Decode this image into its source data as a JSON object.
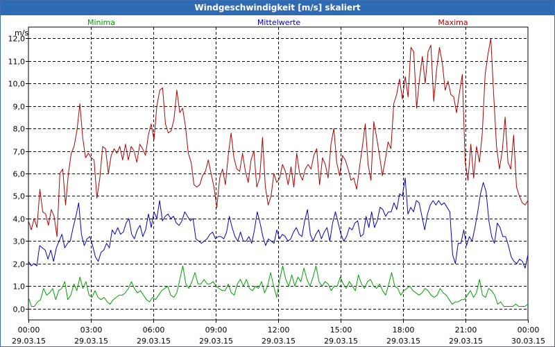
{
  "window": {
    "title": "Windgeschwindigkeit [m/s] skaliert"
  },
  "chart_data": {
    "type": "line",
    "title": "Windgeschwindigkeit [m/s] skaliert",
    "ylabel": "m/s",
    "xlabel": "",
    "ylim": [
      -0.5,
      12.5
    ],
    "xlim": [
      0,
      24
    ],
    "grid": true,
    "y_ticks": [
      "0,0",
      "1,0",
      "2,0",
      "3,0",
      "4,0",
      "5,0",
      "6,0",
      "7,0",
      "8,0",
      "9,0",
      "10,0",
      "11,0",
      "12,0"
    ],
    "x_ticks": [
      {
        "time": "00:00",
        "date": "29.03.15"
      },
      {
        "time": "03:00",
        "date": "29.03.15"
      },
      {
        "time": "06:00",
        "date": "29.03.15"
      },
      {
        "time": "09:00",
        "date": "29.03.15"
      },
      {
        "time": "12:00",
        "date": "29.03.15"
      },
      {
        "time": "15:00",
        "date": "29.03.15"
      },
      {
        "time": "18:00",
        "date": "29.03.15"
      },
      {
        "time": "21:00",
        "date": "29.03.15"
      },
      {
        "time": "00:00",
        "date": "30.03.15"
      }
    ],
    "legend_position": "top",
    "series": [
      {
        "name": "Minima",
        "color": "#00a000",
        "values": [
          0.5,
          0.1,
          0.1,
          0.3,
          0.4,
          0.9,
          0.6,
          0.7,
          0.9,
          0.4,
          0.8,
          0.9,
          1.2,
          0.4,
          0.6,
          1.1,
          0.8,
          1.4,
          0.9,
          1.2,
          0.6,
          0.5,
          0.8,
          0.5,
          0.4,
          0.5,
          0.3,
          0.2,
          0.4,
          0.5,
          0.6,
          0.6,
          0.7,
          0.9,
          1.2,
          0.9,
          0.7,
          0.8,
          0.6,
          0.4,
          0.3,
          0.5,
          0.4,
          0.6,
          0.8,
          0.9,
          1.0,
          0.6,
          0.5,
          0.7,
          1.3,
          1.9,
          1.1,
          0.9,
          1.2,
          1.6,
          1.1,
          1.1,
          1.3,
          1.1,
          1.1,
          1.2,
          1.0,
          0.9,
          0.8,
          0.8,
          1.1,
          0.7,
          0.6,
          1.1,
          1.3,
          1.0,
          1.3,
          0.9,
          0.8,
          1.0,
          0.9,
          1.2,
          0.7,
          1.0,
          1.6,
          1.0,
          0.5,
          1.3,
          1.9,
          1.3,
          1.0,
          1.5,
          1.0,
          1.4,
          1.2,
          1.8,
          1.3,
          1.0,
          1.4,
          1.9,
          1.2,
          1.0,
          1.2,
          1.1,
          0.8,
          1.0,
          1.0,
          1.4,
          1.1,
          0.9,
          1.2,
          1.0,
          0.8,
          1.5,
          1.1,
          0.9,
          1.2,
          1.3,
          1.0,
          0.9,
          1.1,
          0.8,
          0.6,
          1.1,
          1.6,
          1.0,
          0.9,
          0.6,
          0.8,
          0.9,
          1.0,
          0.8,
          0.7,
          0.6,
          0.7,
          0.9,
          0.8,
          0.6,
          0.5,
          0.6,
          0.9,
          0.7,
          0.6,
          0.4,
          0.2,
          0.3,
          0.3,
          0.4,
          0.4,
          0.6,
          0.8,
          0.5,
          0.7,
          1.3,
          0.6,
          0.5,
          0.9,
          0.8,
          0.6,
          0.2,
          0.3,
          0.1,
          0.1,
          0.1,
          0.1,
          0.2,
          0.1,
          0.1,
          0.1,
          0.2
        ]
      },
      {
        "name": "Mittelwerte",
        "color": "#0000c0",
        "values": [
          2.1,
          1.9,
          2.0,
          1.9,
          2.8,
          2.7,
          2.6,
          2.2,
          2.6,
          2.1,
          2.7,
          3.0,
          3.3,
          2.7,
          2.9,
          3.0,
          3.6,
          4.1,
          4.7,
          3.3,
          2.8,
          3.1,
          3.2,
          2.8,
          2.3,
          2.1,
          2.5,
          2.6,
          2.9,
          2.7,
          3.5,
          3.3,
          3.6,
          3.3,
          3.4,
          3.8,
          4.0,
          3.3,
          3.1,
          3.5,
          3.7,
          3.2,
          3.5,
          4.2,
          3.6,
          4.3,
          4.0,
          4.8,
          3.9,
          4.1,
          4.2,
          4.0,
          4.1,
          3.8,
          3.7,
          3.9,
          4.3,
          4.1,
          3.9,
          4.0,
          3.1,
          3.0,
          2.9,
          3.0,
          3.1,
          3.3,
          3.4,
          3.1,
          3.2,
          3.2,
          3.1,
          3.4,
          4.1,
          3.6,
          3.2,
          3.0,
          3.4,
          3.0,
          3.0,
          3.2,
          2.9,
          3.5,
          4.3,
          3.8,
          3.2,
          2.8,
          3.1,
          3.0,
          2.9,
          3.5,
          3.1,
          3.3,
          3.2,
          3.0,
          3.1,
          3.4,
          3.6,
          3.3,
          3.2,
          3.9,
          4.4,
          3.3,
          3.0,
          3.3,
          3.5,
          3.1,
          3.4,
          3.6,
          3.0,
          3.8,
          4.3,
          3.8,
          3.3,
          3.0,
          3.2,
          3.6,
          3.5,
          3.8,
          3.9,
          3.2,
          3.3,
          4.1,
          3.6,
          4.3,
          3.6,
          3.9,
          4.5,
          4.4,
          4.1,
          4.3,
          4.3,
          4.7,
          4.4,
          5.1,
          5.0,
          5.8,
          4.2,
          4.5,
          4.3,
          4.8,
          4.7,
          4.1,
          3.5,
          4.2,
          4.6,
          4.8,
          4.6,
          4.8,
          4.6,
          4.7,
          4.5,
          4.3,
          2.4,
          2.0,
          2.9,
          2.9,
          3.5,
          2.8,
          3.2,
          3.0,
          3.6,
          4.3,
          5.1,
          5.6,
          5.2,
          3.9,
          3.2,
          2.9,
          3.8,
          3.6,
          3.2,
          3.2,
          2.8,
          2.3,
          2.1,
          2.0,
          2.2,
          2.1,
          1.8,
          2.4
        ]
      },
      {
        "name": "Maxima",
        "color": "#b00000",
        "values": [
          3.9,
          3.5,
          4.0,
          3.6,
          5.3,
          4.3,
          4.2,
          3.7,
          4.4,
          4.1,
          3.2,
          6.0,
          6.2,
          4.6,
          6.0,
          6.9,
          7.2,
          7.9,
          9.1,
          7.6,
          6.7,
          6.9,
          6.7,
          6.6,
          4.9,
          5.8,
          7.2,
          7.1,
          6.0,
          6.8,
          7.1,
          6.9,
          7.2,
          6.6,
          7.3,
          6.6,
          7.2,
          7.0,
          6.5,
          7.3,
          7.1,
          6.8,
          7.7,
          8.2,
          7.5,
          9.0,
          9.7,
          9.8,
          8.2,
          7.8,
          7.9,
          8.4,
          9.7,
          8.7,
          8.9,
          8.1,
          6.9,
          6.5,
          5.5,
          5.4,
          5.5,
          5.9,
          6.1,
          6.6,
          6.0,
          5.4,
          4.5,
          5.8,
          6.2,
          5.5,
          6.8,
          7.8,
          6.7,
          6.2,
          6.1,
          6.9,
          6.1,
          5.6,
          6.6,
          7.0,
          5.4,
          5.8,
          7.6,
          5.4,
          4.6,
          5.0,
          6.0,
          5.6,
          5.8,
          6.4,
          6.1,
          5.5,
          6.3,
          5.4,
          6.9,
          6.0,
          5.7,
          6.2,
          6.4,
          6.2,
          6.8,
          7.1,
          5.5,
          6.7,
          6.4,
          5.8,
          7.3,
          8.0,
          6.5,
          5.9,
          6.8,
          6.6,
          6.2,
          5.7,
          5.8,
          5.3,
          6.3,
          7.2,
          8.2,
          6.4,
          5.7,
          8.3,
          7.6,
          6.8,
          5.9,
          6.6,
          7.4,
          7.1,
          9.1,
          9.5,
          10.2,
          9.3,
          10.3,
          9.4,
          11.6,
          11.4,
          8.9,
          10.2,
          11.2,
          10.0,
          11.4,
          11.7,
          9.2,
          10.6,
          11.6,
          10.9,
          9.7,
          10.1,
          9.5,
          9.4,
          8.7,
          9.6,
          10.4,
          6.5,
          5.7,
          7.3,
          5.8,
          7.2,
          6.5,
          7.8,
          10.4,
          11.3,
          12.0,
          9.5,
          7.2,
          6.2,
          7.0,
          8.5,
          6.5,
          6.2,
          7.7,
          5.4,
          5.0,
          4.7,
          4.6,
          4.8
        ]
      }
    ]
  }
}
